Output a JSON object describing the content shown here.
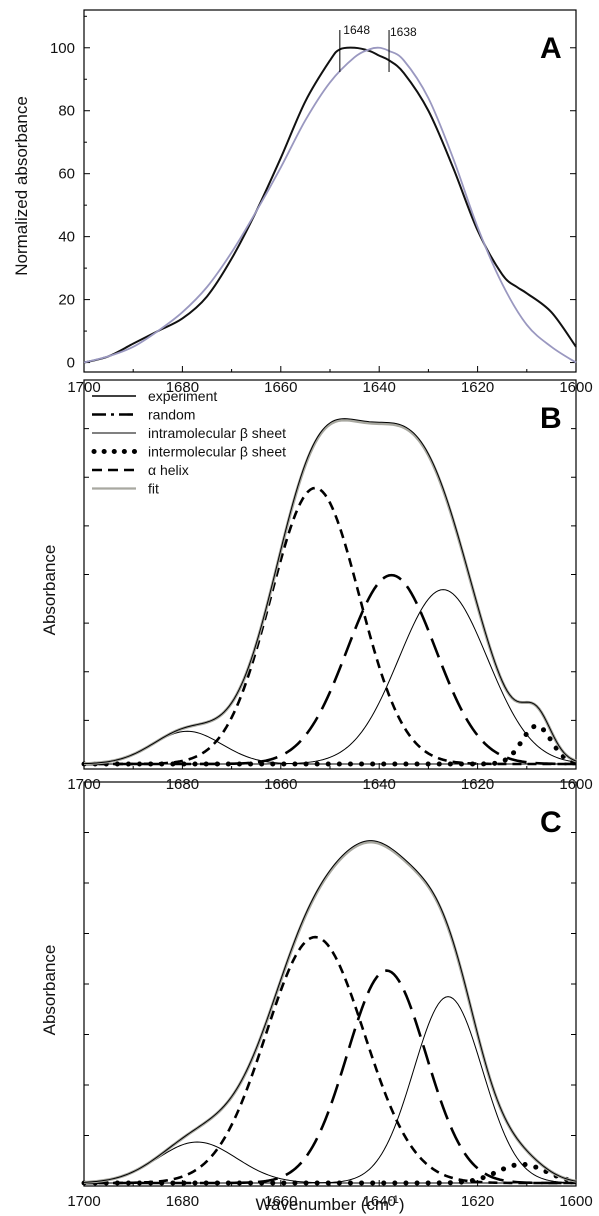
{
  "chart_data": [
    {
      "panel": "A",
      "type": "line",
      "xlabel": "",
      "ylabel": "Normalized absorbance",
      "xlim": [
        1700,
        1600
      ],
      "ylim": [
        -3,
        112
      ],
      "x_ticks": [
        "1700",
        "1680",
        "1660",
        "1640",
        "1620",
        "1600"
      ],
      "y_ticks": [
        "0",
        "20",
        "40",
        "60",
        "80",
        "100"
      ],
      "annotations": [
        "1648",
        "1638"
      ],
      "series": [
        {
          "color": "#111111",
          "x": [
            1700,
            1695,
            1690,
            1685,
            1680,
            1675,
            1670,
            1665,
            1660,
            1655,
            1650,
            1648,
            1645,
            1642,
            1640,
            1638,
            1635,
            1630,
            1625,
            1620,
            1615,
            1612,
            1610,
            1605,
            1600
          ],
          "y": [
            0,
            2,
            6,
            10,
            14,
            21,
            33,
            48,
            65,
            83,
            96,
            99.5,
            100,
            99,
            97.5,
            96,
            92,
            80,
            62,
            42,
            28,
            24,
            22,
            16,
            5
          ]
        },
        {
          "color": "#9a98c0",
          "x": [
            1700,
            1695,
            1690,
            1685,
            1680,
            1675,
            1670,
            1665,
            1660,
            1655,
            1650,
            1645,
            1642,
            1640,
            1638,
            1635,
            1630,
            1625,
            1620,
            1615,
            1610,
            1605,
            1600
          ],
          "y": [
            0,
            2,
            5,
            10,
            16,
            24,
            35,
            48,
            62,
            77,
            89,
            97,
            99.5,
            100,
            99,
            96,
            84,
            65,
            43,
            25,
            12,
            5,
            0
          ]
        }
      ]
    },
    {
      "panel": "B",
      "type": "line",
      "xlabel": "",
      "ylabel": "Absorbance",
      "xlim": [
        1700,
        1600
      ],
      "ylim": [
        0,
        1
      ],
      "x_ticks": [
        "1700",
        "1680",
        "1660",
        "1640",
        "1620",
        "1600"
      ],
      "legend": [
        {
          "label": "experiment",
          "style": "solid"
        },
        {
          "label": "random",
          "style": "dashdot"
        },
        {
          "label": "intramolecular β sheet",
          "style": "thin"
        },
        {
          "label": "intermolecular β sheet",
          "style": "dotted"
        },
        {
          "label": "α helix",
          "style": "dashed"
        },
        {
          "label": "fit",
          "style": "gray"
        }
      ],
      "components": [
        {
          "center": 1653,
          "amplitude": 0.76,
          "sigma": 9
        },
        {
          "center": 1637.5,
          "amplitude": 0.52,
          "sigma": 9
        },
        {
          "center": 1627,
          "amplitude": 0.48,
          "sigma": 9
        },
        {
          "center": 1608,
          "amplitude": 0.105,
          "sigma": 3
        },
        {
          "center": 1679,
          "amplitude": 0.09,
          "sigma": 7
        }
      ]
    },
    {
      "panel": "C",
      "type": "line",
      "xlabel": "Wavenumber (cm-1)",
      "ylabel": "Absorbance",
      "xlim": [
        1700,
        1600
      ],
      "ylim": [
        0,
        1
      ],
      "x_ticks": [
        "1700",
        "1680",
        "1660",
        "1640",
        "1620",
        "1600"
      ],
      "components": [
        {
          "center": 1653,
          "amplitude": 0.66,
          "sigma": 10
        },
        {
          "center": 1638.5,
          "amplitude": 0.57,
          "sigma": 8
        },
        {
          "center": 1626,
          "amplitude": 0.5,
          "sigma": 7
        },
        {
          "center": 1611,
          "amplitude": 0.05,
          "sigma": 5
        },
        {
          "center": 1677,
          "amplitude": 0.11,
          "sigma": 8
        }
      ]
    }
  ],
  "labels": {
    "panel_a": "A",
    "panel_b": "B",
    "panel_c": "C",
    "ylabel_a": "Normalized absorbance",
    "ylabel_b": "Absorbance",
    "ylabel_c": "Absorbance",
    "xlabel_base": "Wavenumber (cm",
    "xlabel_sup": "-1",
    "xlabel_end": ")",
    "peak_1": "1648",
    "peak_2": "1638"
  }
}
